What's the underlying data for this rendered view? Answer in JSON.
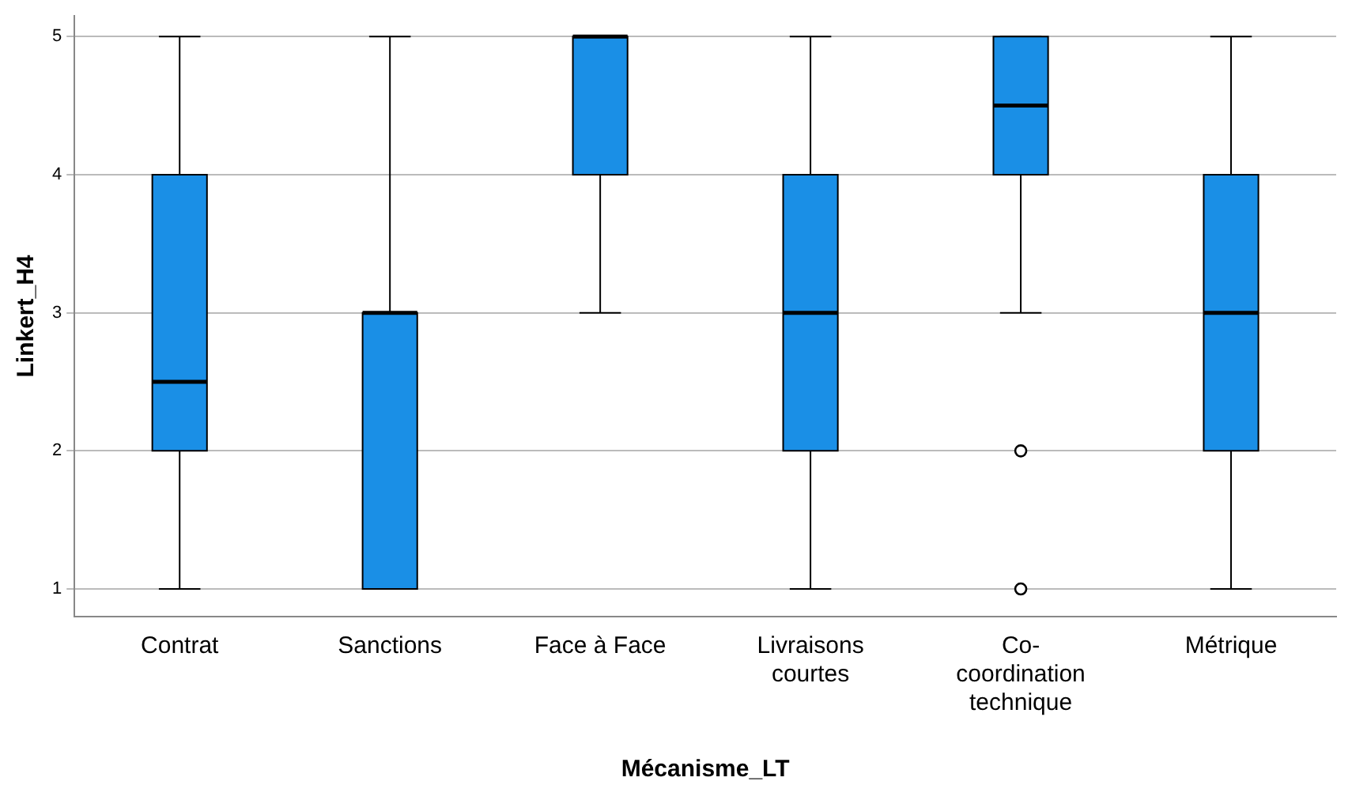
{
  "chart_data": {
    "type": "box",
    "xlabel": "Mécanisme_LT",
    "ylabel": "Linkert_H4",
    "categories": [
      "Contrat",
      "Sanctions",
      "Face à Face",
      "Livraisons courtes",
      "Co-coordination technique",
      "Métrique"
    ],
    "boxes": [
      {
        "low": 1,
        "q1": 2,
        "median": 2.5,
        "q3": 4,
        "high": 5
      },
      {
        "low": 1,
        "q1": 1,
        "median": 3,
        "q3": 3,
        "high": 5
      },
      {
        "low": 3,
        "q1": 4,
        "median": 5,
        "q3": 5,
        "high": 5
      },
      {
        "low": 1,
        "q1": 2,
        "median": 3,
        "q3": 4,
        "high": 5
      },
      {
        "low": 3,
        "q1": 4,
        "median": 4.5,
        "q3": 5,
        "high": 5,
        "outliers": [
          2,
          1
        ]
      },
      {
        "low": 1,
        "q1": 2,
        "median": 3,
        "q3": 4,
        "high": 5
      }
    ],
    "color": "#1a8fe6",
    "ylim": [
      0.8,
      5.15
    ],
    "yticks": [
      1,
      2,
      3,
      4,
      5
    ],
    "grid": "y"
  }
}
